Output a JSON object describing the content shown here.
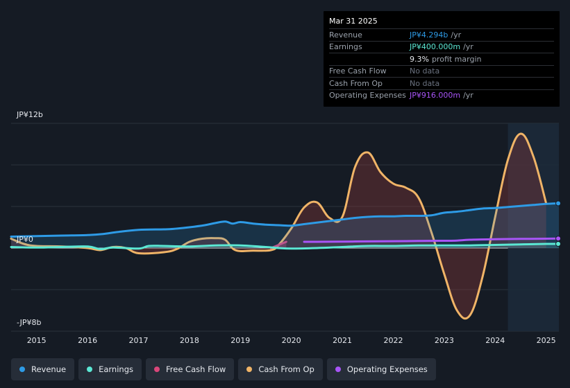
{
  "tooltip": {
    "date": "Mar 31 2025",
    "rows": [
      {
        "label": "Revenue",
        "value": "JP¥4.294b",
        "unit": "/yr",
        "color": "#2e9be6"
      },
      {
        "label": "Earnings",
        "value": "JP¥400.000m",
        "unit": "/yr",
        "color": "#5be8d4"
      },
      {
        "label": "",
        "value": "9.3%",
        "unit": "profit margin",
        "color": "#e6e9ee"
      },
      {
        "label": "Free Cash Flow",
        "value": "No data",
        "unit": "",
        "color": "#6b7280"
      },
      {
        "label": "Cash From Op",
        "value": "No data",
        "unit": "",
        "color": "#6b7280"
      },
      {
        "label": "Operating Expenses",
        "value": "JP¥916.000m",
        "unit": "/yr",
        "color": "#a855f7"
      }
    ]
  },
  "legend": [
    {
      "label": "Revenue",
      "color": "#2e9be6"
    },
    {
      "label": "Earnings",
      "color": "#5be8d4"
    },
    {
      "label": "Free Cash Flow",
      "color": "#d9467a"
    },
    {
      "label": "Cash From Op",
      "color": "#f0b467"
    },
    {
      "label": "Operating Expenses",
      "color": "#a855f7"
    }
  ],
  "chart_data": {
    "type": "area",
    "title": "",
    "y_top_label": "JP¥12b",
    "y_zero_label": "JP¥0",
    "y_bottom_label": "-JP¥8b",
    "ylim": [
      -8,
      12
    ],
    "xlim": [
      2014.5,
      2025.25
    ],
    "x_ticks": [
      "2015",
      "2016",
      "2017",
      "2018",
      "2019",
      "2020",
      "2021",
      "2022",
      "2023",
      "2024",
      "2025"
    ],
    "forecast_start": 2024.25,
    "series": [
      {
        "name": "Revenue",
        "color": "#2e9be6",
        "fill": true,
        "x": [
          2014.5,
          2015.0,
          2015.5,
          2016.0,
          2016.3,
          2016.6,
          2017.0,
          2017.5,
          2017.7,
          2018.0,
          2018.3,
          2018.5,
          2018.7,
          2018.85,
          2019.0,
          2019.25,
          2019.5,
          2019.75,
          2020.0,
          2020.25,
          2020.5,
          2020.75,
          2021.0,
          2021.25,
          2021.5,
          2021.75,
          2022.0,
          2022.25,
          2022.5,
          2022.75,
          2023.0,
          2023.25,
          2023.5,
          2023.75,
          2024.0,
          2024.25,
          2024.5,
          2024.75,
          2025.0,
          2025.25
        ],
        "values": [
          1.1,
          1.15,
          1.2,
          1.25,
          1.35,
          1.55,
          1.75,
          1.8,
          1.85,
          2.0,
          2.2,
          2.4,
          2.55,
          2.35,
          2.5,
          2.35,
          2.25,
          2.2,
          2.15,
          2.3,
          2.45,
          2.6,
          2.75,
          2.9,
          3.0,
          3.05,
          3.05,
          3.1,
          3.1,
          3.15,
          3.4,
          3.5,
          3.65,
          3.8,
          3.85,
          3.95,
          4.05,
          4.15,
          4.25,
          4.3
        ]
      },
      {
        "name": "Earnings",
        "color": "#5be8d4",
        "fill": true,
        "x": [
          2014.5,
          2015.0,
          2015.5,
          2016.0,
          2016.25,
          2016.5,
          2017.0,
          2017.2,
          2017.5,
          2018.0,
          2018.5,
          2019.0,
          2019.5,
          2019.75,
          2020.0,
          2020.5,
          2021.0,
          2021.5,
          2022.0,
          2022.5,
          2023.0,
          2023.5,
          2024.0,
          2024.5,
          2025.0,
          2025.25
        ],
        "values": [
          0.1,
          0.05,
          0.1,
          0.15,
          -0.1,
          0.05,
          -0.05,
          0.2,
          0.2,
          0.15,
          0.25,
          0.25,
          0.1,
          0.0,
          -0.05,
          0.0,
          0.1,
          0.2,
          0.2,
          0.25,
          0.25,
          0.25,
          0.3,
          0.35,
          0.4,
          0.4
        ]
      },
      {
        "name": "Free Cash Flow",
        "color": "#d9467a",
        "fill": true,
        "x": [
          2019.6,
          2019.75,
          2019.9
        ],
        "values": [
          0.0,
          0.3,
          0.6
        ]
      },
      {
        "name": "Cash From Op",
        "color": "#f0b467",
        "fill": true,
        "x": [
          2014.5,
          2014.75,
          2015.0,
          2015.5,
          2016.0,
          2016.25,
          2016.5,
          2016.75,
          2017.0,
          2017.5,
          2017.75,
          2018.0,
          2018.25,
          2018.5,
          2018.7,
          2018.9,
          2019.25,
          2019.6,
          2019.75,
          2020.0,
          2020.25,
          2020.5,
          2020.75,
          2021.0,
          2021.25,
          2021.5,
          2021.75,
          2022.0,
          2022.25,
          2022.5,
          2022.75,
          2023.0,
          2023.25,
          2023.5,
          2023.75,
          2024.0,
          2024.25,
          2024.5,
          2024.75,
          2025.0
        ],
        "values": [
          0.9,
          0.4,
          0.2,
          0.15,
          0.0,
          -0.2,
          0.1,
          0.0,
          -0.5,
          -0.4,
          -0.1,
          0.6,
          0.9,
          0.95,
          0.8,
          -0.2,
          -0.25,
          -0.2,
          0.3,
          1.9,
          3.9,
          4.4,
          2.9,
          3.0,
          7.8,
          9.2,
          7.3,
          6.2,
          5.8,
          4.8,
          1.5,
          -2.5,
          -6.0,
          -6.5,
          -2.8,
          3.0,
          8.5,
          11.0,
          8.8,
          4.3
        ]
      },
      {
        "name": "Operating Expenses",
        "color": "#a855f7",
        "fill": false,
        "x": [
          2020.25,
          2020.5,
          2021.0,
          2021.5,
          2022.0,
          2022.5,
          2023.0,
          2023.25,
          2023.5,
          2024.0,
          2024.5,
          2025.0,
          2025.25
        ],
        "values": [
          0.6,
          0.6,
          0.62,
          0.64,
          0.66,
          0.68,
          0.7,
          0.72,
          0.8,
          0.85,
          0.88,
          0.9,
          0.92
        ]
      }
    ]
  }
}
